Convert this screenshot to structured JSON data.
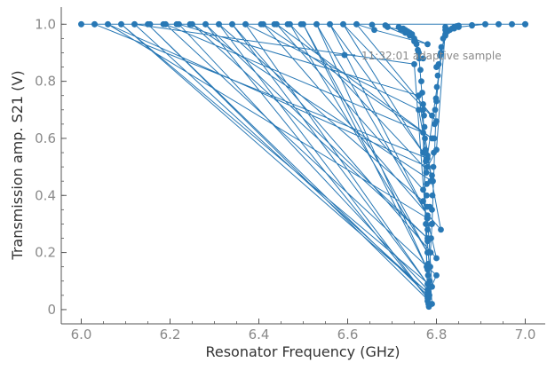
{
  "chart_data": {
    "type": "line",
    "title": "",
    "xlabel": "Resonator Frequency (GHz)",
    "ylabel": "Transmission amp. S21 (V)",
    "xlim": [
      5.955,
      7.045
    ],
    "ylim": [
      -0.05,
      1.06
    ],
    "xticks": [
      6.0,
      6.2,
      6.4,
      6.6,
      6.8,
      7.0
    ],
    "xtick_labels": [
      "6.0",
      "6.2",
      "6.4",
      "6.6",
      "6.8",
      "7.0"
    ],
    "yticks": [
      0,
      0.2,
      0.4,
      0.6,
      0.8,
      1.0
    ],
    "ytick_labels": [
      "0",
      "0.2",
      "0.4",
      "0.6",
      "0.8",
      "1.0"
    ],
    "grid": false,
    "legend_position": "top-right",
    "series": [
      {
        "name": "11:32:01 adaptive sample",
        "color": "#2878b5",
        "marker": "circle",
        "x": [
          6.0,
          7.0,
          6.03,
          6.78,
          6.78,
          6.82,
          6.82,
          6.8,
          6.78,
          6.06,
          6.78,
          6.79,
          6.09,
          6.78,
          6.12,
          6.75,
          6.79,
          6.15,
          6.78,
          6.8,
          6.19,
          6.77,
          6.78,
          6.22,
          6.76,
          6.79,
          6.25,
          6.78,
          6.28,
          6.78,
          6.31,
          6.77,
          6.8,
          6.34,
          6.78,
          6.37,
          6.76,
          6.81,
          6.41,
          6.79,
          6.44,
          6.77,
          6.79,
          6.47,
          6.78,
          6.5,
          6.78,
          6.53,
          6.78,
          6.56,
          6.77,
          6.59,
          6.8,
          6.62,
          6.66,
          6.78,
          6.69,
          6.72,
          6.73,
          6.74,
          6.75,
          6.76,
          6.77,
          6.78,
          6.79,
          6.8,
          6.81,
          6.82,
          6.83,
          6.84,
          6.85,
          6.88,
          6.91,
          6.94,
          6.97,
          7.0
        ],
        "y": [
          1.0,
          1.0,
          1.0,
          0.53,
          0.54,
          0.99,
          0.98,
          0.56,
          0.5,
          1.0,
          0.32,
          0.08,
          1.0,
          0.06,
          1.0,
          0.86,
          0.02,
          1.0,
          0.05,
          0.12,
          1.0,
          0.62,
          0.07,
          1.0,
          0.75,
          0.45,
          1.0,
          0.25,
          1.0,
          0.04,
          1.0,
          0.38,
          0.18,
          1.0,
          0.09,
          1.0,
          0.7,
          0.28,
          1.0,
          0.6,
          1.0,
          0.42,
          0.47,
          1.0,
          0.2,
          1.0,
          0.14,
          1.0,
          0.33,
          1.0,
          0.55,
          1.0,
          0.66,
          1.0,
          0.98,
          0.93,
          0.99,
          0.98,
          0.97,
          0.96,
          0.94,
          0.9,
          0.7,
          0.03,
          0.3,
          0.73,
          0.9,
          0.96,
          0.98,
          0.985,
          0.99,
          0.995,
          1.0,
          1.0,
          1.0,
          1.0
        ],
        "markers": [
          [
            6.0,
            1.0
          ],
          [
            6.03,
            1.0
          ],
          [
            6.06,
            1.0
          ],
          [
            6.09,
            1.0
          ],
          [
            6.12,
            1.0
          ],
          [
            6.155,
            1.0
          ],
          [
            6.185,
            1.0
          ],
          [
            6.215,
            1.0
          ],
          [
            6.245,
            1.0
          ],
          [
            6.28,
            1.0
          ],
          [
            6.31,
            1.0
          ],
          [
            6.34,
            1.0
          ],
          [
            6.37,
            1.0
          ],
          [
            6.405,
            1.0
          ],
          [
            6.435,
            1.0
          ],
          [
            6.465,
            1.0
          ],
          [
            6.495,
            1.0
          ],
          [
            6.53,
            1.0
          ],
          [
            6.56,
            1.0
          ],
          [
            6.59,
            1.0
          ],
          [
            6.62,
            1.0
          ],
          [
            6.655,
            0.998
          ],
          [
            6.685,
            0.996
          ],
          [
            6.715,
            0.99
          ],
          [
            6.725,
            0.985
          ],
          [
            6.73,
            0.98
          ],
          [
            6.735,
            0.975
          ],
          [
            6.74,
            0.97
          ],
          [
            6.745,
            0.965
          ],
          [
            6.75,
            0.95
          ],
          [
            6.752,
            0.94
          ],
          [
            6.755,
            0.93
          ],
          [
            6.758,
            0.91
          ],
          [
            6.761,
            0.88
          ],
          [
            6.764,
            0.84
          ],
          [
            6.766,
            0.8
          ],
          [
            6.768,
            0.76
          ],
          [
            6.77,
            0.72
          ],
          [
            6.772,
            0.68
          ],
          [
            6.773,
            0.64
          ],
          [
            6.774,
            0.6
          ],
          [
            6.775,
            0.56
          ],
          [
            6.776,
            0.52
          ],
          [
            6.777,
            0.48
          ],
          [
            6.778,
            0.44
          ],
          [
            6.778,
            0.4
          ],
          [
            6.779,
            0.36
          ],
          [
            6.779,
            0.32
          ],
          [
            6.78,
            0.28
          ],
          [
            6.78,
            0.24
          ],
          [
            6.78,
            0.2
          ],
          [
            6.781,
            0.16
          ],
          [
            6.781,
            0.12
          ],
          [
            6.781,
            0.09
          ],
          [
            6.782,
            0.06
          ],
          [
            6.782,
            0.04
          ],
          [
            6.782,
            0.02
          ],
          [
            6.783,
            0.01
          ],
          [
            6.784,
            0.05
          ],
          [
            6.785,
            0.1
          ],
          [
            6.786,
            0.15
          ],
          [
            6.787,
            0.2
          ],
          [
            6.788,
            0.25
          ],
          [
            6.789,
            0.3
          ],
          [
            6.79,
            0.35
          ],
          [
            6.791,
            0.4
          ],
          [
            6.792,
            0.45
          ],
          [
            6.793,
            0.5
          ],
          [
            6.794,
            0.55
          ],
          [
            6.795,
            0.6
          ],
          [
            6.796,
            0.65
          ],
          [
            6.797,
            0.7
          ],
          [
            6.799,
            0.74
          ],
          [
            6.801,
            0.78
          ],
          [
            6.803,
            0.82
          ],
          [
            6.805,
            0.86
          ],
          [
            6.808,
            0.89
          ],
          [
            6.811,
            0.92
          ],
          [
            6.815,
            0.95
          ],
          [
            6.82,
            0.965
          ],
          [
            6.825,
            0.975
          ],
          [
            6.83,
            0.98
          ],
          [
            6.835,
            0.985
          ],
          [
            6.84,
            0.99
          ],
          [
            6.845,
            0.993
          ],
          [
            6.85,
            0.995
          ],
          [
            6.88,
            0.997
          ],
          [
            6.91,
            1.0
          ],
          [
            6.94,
            1.0
          ],
          [
            6.97,
            1.0
          ],
          [
            7.0,
            1.0
          ],
          [
            6.76,
            0.9
          ],
          [
            6.77,
            0.88
          ],
          [
            6.79,
            0.68
          ],
          [
            6.8,
            0.85
          ],
          [
            6.785,
            0.36
          ],
          [
            6.787,
            0.45
          ],
          [
            6.776,
            0.3
          ],
          [
            6.778,
            0.15
          ]
        ]
      }
    ]
  }
}
